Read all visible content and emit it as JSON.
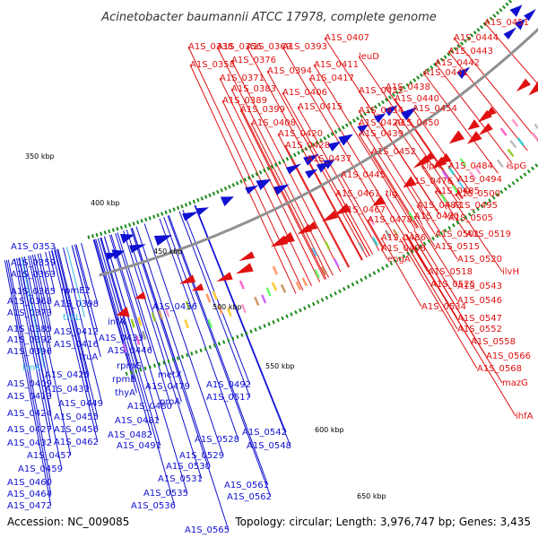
{
  "title": "Acinetobacter baumannii ATCC 17978, complete genome",
  "accession": "Accession: NC_009085",
  "summary": "Topology: circular; Length: 3,976,747 bp; Genes: 3,435",
  "colors": {
    "forward": "#e01010",
    "reverse": "#1010d0",
    "trna": "#30b8e0",
    "backbone": "#909090",
    "tick": "#1a8c1a"
  },
  "kbp_labels": [
    "350 kbp",
    "400 kbp",
    "450 kbp",
    "500 kbp",
    "550 kbp",
    "600 kbp",
    "650 kbp"
  ],
  "forward_genes": [
    "A1S_0338",
    "A1S_0356",
    "A1S_0369",
    "A1S_0393",
    "A1S_0407",
    "A1S_0358",
    "A1S_0376",
    "A1S_0411",
    "A1S_0371",
    "A1S_0394",
    "A1S_0383",
    "A1S_0406",
    "A1S_0417",
    "A1S_0389",
    "A1S_0415",
    "A1S_0399",
    "A1S_0408",
    "A1S_0420",
    "A1S_0428",
    "A1S_0437",
    "A1S_0445",
    "leuD",
    "A1S_0422",
    "A1S_0434",
    "A1S_0429",
    "A1S_0439",
    "A1S_0451",
    "A1S_0444",
    "A1S_0443",
    "A1S_0442",
    "A1S_0441",
    "A1S_0438",
    "A1S_0440",
    "A1S_0454",
    "A1S_0450",
    "A1S_0452",
    "A1S_0461",
    "tig",
    "A1S_0467",
    "A1S_0478",
    "A1S_0486",
    "A1S_0498",
    "engA",
    "clpX",
    "A1S_0476",
    "A1S_0484",
    "A1S_0483",
    "A1S_0490",
    "A1S_0485",
    "A1S_0494",
    "ispG",
    "A1S_0500",
    "A1S_0495",
    "A1S_0505",
    "A1S_0501",
    "A1S_0519",
    "A1S_0515",
    "A1S_0520",
    "A1S_0518",
    "A1S_0525",
    "ilvH",
    "A1S_0543",
    "A1S_0546",
    "A1S_0534",
    "A1S_0547",
    "A1S_0552",
    "A1S_0558",
    "A1S_0566",
    "A1S_0568",
    "mazG",
    "ihfA"
  ],
  "reverse_genes": [
    "A1S_0353",
    "A1S_0359",
    "A1S_0363",
    "A1S_0365",
    "rpmE2",
    "A1S_0368",
    "A1S_0398",
    "A1S_0373",
    "A1S_0385",
    "A1S_0412",
    "infA",
    "A1S_0392",
    "A1S_0416",
    "A1S_0433",
    "A1S_0436",
    "A1S_0396",
    "truA",
    "A1S_0446",
    "A1S_0409",
    "A1S_0426",
    "rpmG",
    "A1S_0413",
    "A1S_0431",
    "rpmB",
    "metX",
    "A1S_0479",
    "A1S_0492",
    "A1S_0424",
    "A1S_0449",
    "thyA",
    "A1S_0480",
    "proA",
    "A1S_0517",
    "A1S_0455",
    "A1S_0481",
    "A1S_0427",
    "A1S_0456",
    "A1S_0432",
    "A1S_0462",
    "A1S_0482",
    "A1S_0491",
    "A1S_0457",
    "A1S_0459",
    "A1S_0460",
    "A1S_0464",
    "A1S_0472",
    "A1S_0528",
    "A1S_0529",
    "A1S_0530",
    "A1S_0531",
    "A1S_0542",
    "A1S_0548",
    "A1S_0535",
    "A1S_0536",
    "A1S_0561",
    "A1S_0562",
    "A1S_0565"
  ],
  "trna_genes": [
    "trnL",
    "trnK"
  ]
}
